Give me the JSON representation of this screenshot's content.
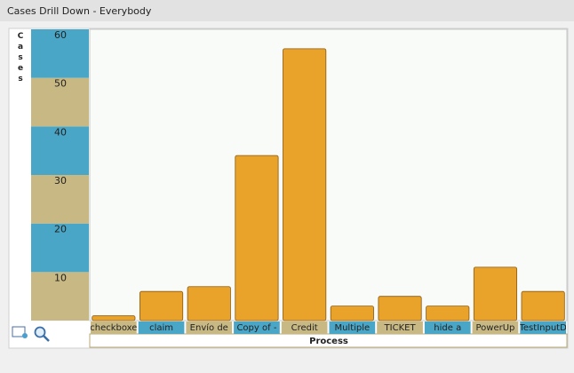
{
  "chart_data": {
    "type": "bar",
    "title": "Cases Drill Down - Everybody",
    "y_label": "Cases",
    "x_label": "Process",
    "categories": [
      "checkboxe",
      "claim",
      "Envío de",
      "Copy of -",
      "Credit",
      "Multiple",
      "TICKET",
      "hide a",
      "PowerUp",
      "TestInputD"
    ],
    "values": [
      1,
      6,
      7,
      34,
      56,
      3,
      5,
      3,
      11,
      6
    ],
    "color": "#e9a22a",
    "ylim": [
      0,
      60
    ],
    "yticks": [
      10,
      20,
      30,
      40,
      50,
      60
    ]
  }
}
